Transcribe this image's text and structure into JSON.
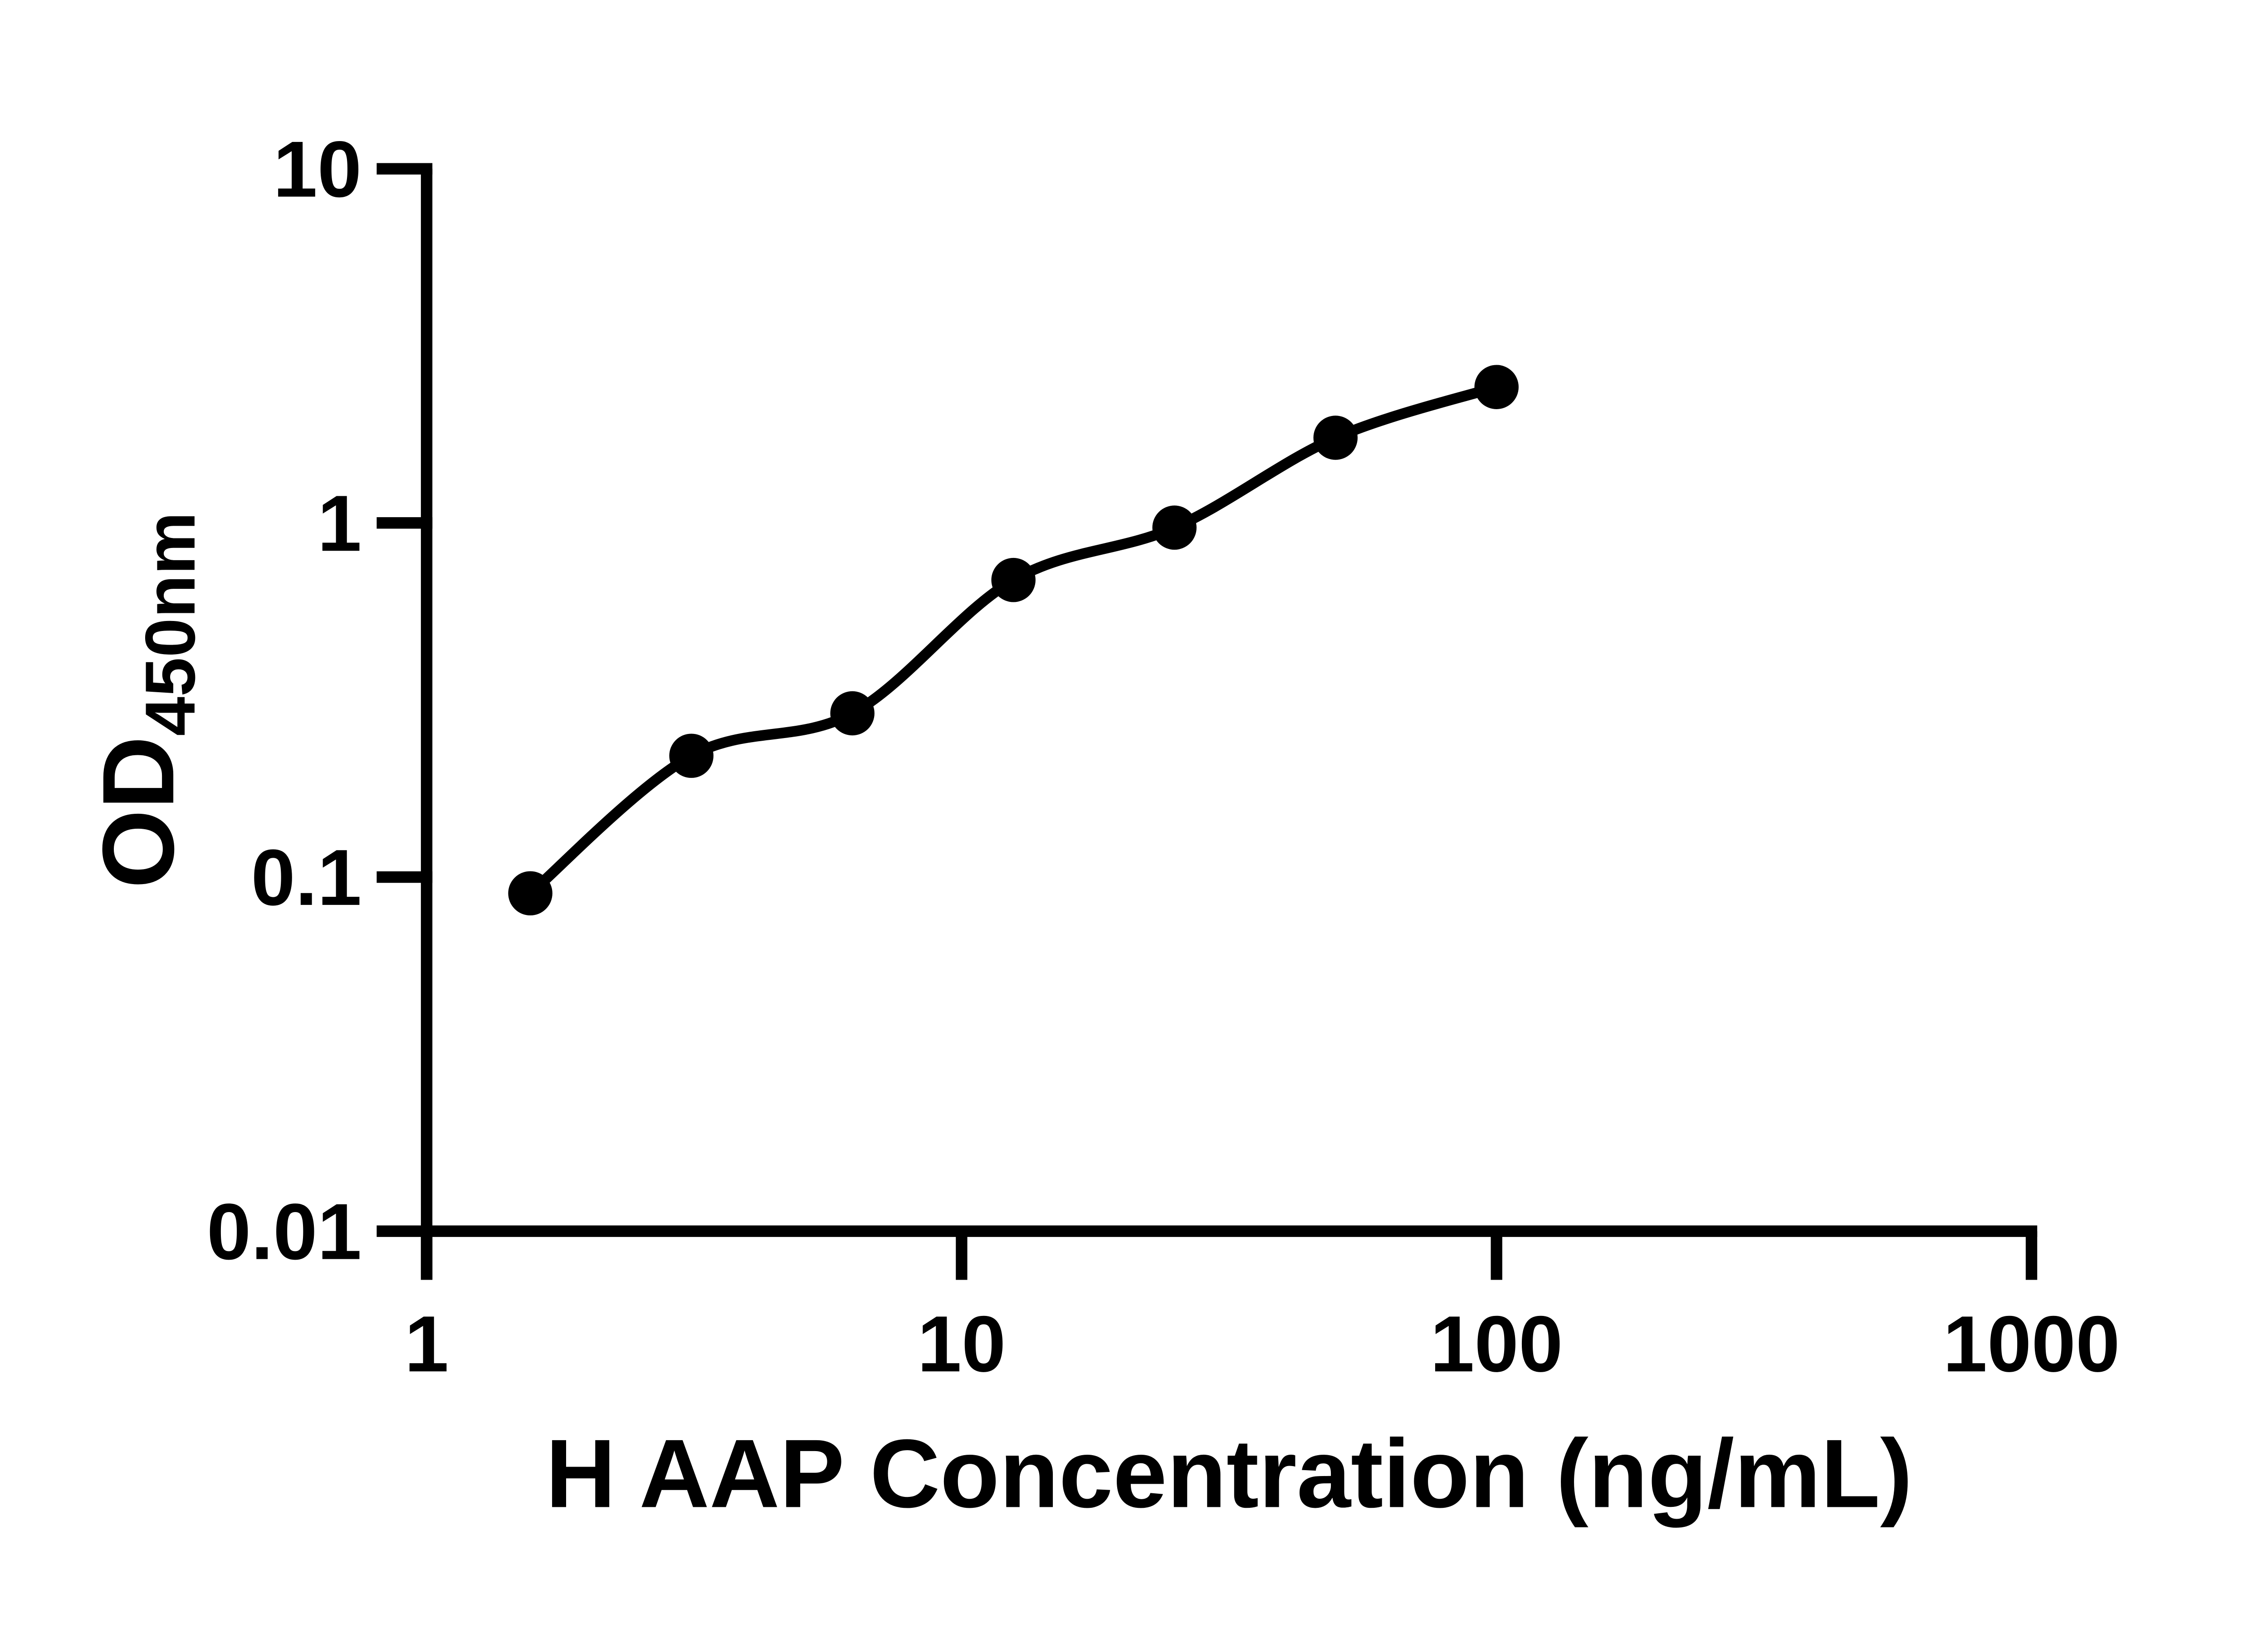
{
  "chart_data": {
    "type": "scatter",
    "title": "",
    "xlabel": "H AAP Concentration (ng/mL)",
    "ylabel_base": "OD",
    "ylabel_subscript": "450nm",
    "x": [
      1.5625,
      3.125,
      6.25,
      12.5,
      25,
      50,
      100
    ],
    "y": [
      0.09,
      0.22,
      0.29,
      0.69,
      0.97,
      1.74,
      2.42
    ],
    "x_scale": "log10",
    "y_scale": "log10",
    "xlim": [
      1,
      1000
    ],
    "ylim": [
      0.01,
      10
    ],
    "x_tick_labels": [
      "1",
      "10",
      "100",
      "1000"
    ],
    "y_tick_labels": [
      "0.01",
      "0.1",
      "1",
      "10"
    ],
    "grid": false,
    "legend_position": "none",
    "marker": "filled-circle",
    "line": "fitted-curve",
    "ink_color": "#000000",
    "background_color": "#ffffff"
  }
}
